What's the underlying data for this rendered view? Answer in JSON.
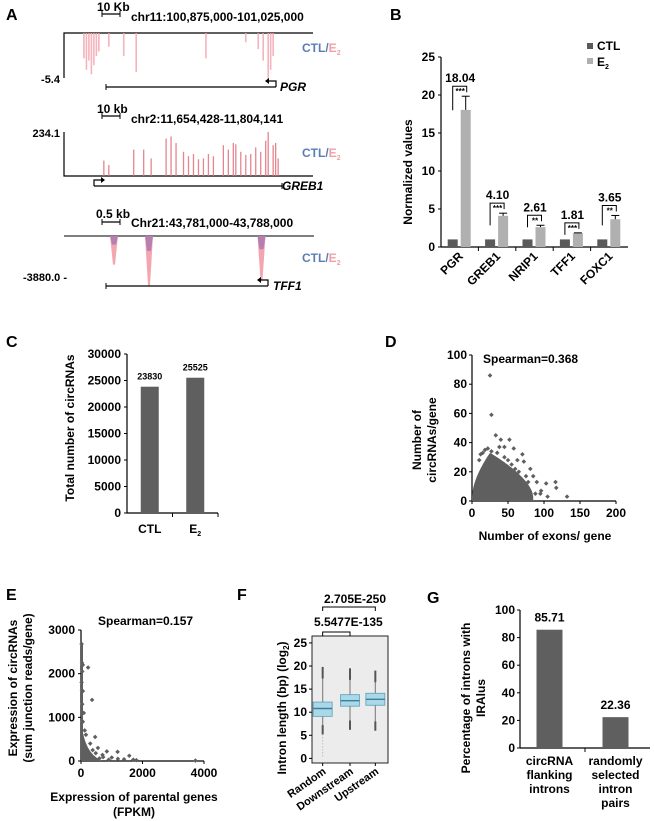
{
  "panel_labels": [
    "A",
    "B",
    "C",
    "D",
    "E",
    "F",
    "G"
  ],
  "colors": {
    "ctl_label": "#5b7db5",
    "e2_label": "#f0a0a8",
    "e2_signal": "#f4a6b0",
    "overlap_signal": "#9b6fb0",
    "ctl_bar": "#5a5a5a",
    "e2_bar": "#b0b0b0",
    "dark_bar": "#5f5f5f",
    "scatter": "#5f5f5f",
    "box_fill": "#a9d8e8",
    "box_line": "#5c9fb8",
    "panel_bg": "#ececec"
  },
  "chart_data": [
    {
      "id": "A",
      "type": "genome-track",
      "legend": {
        "ctl": "CTL",
        "sep": "/",
        "e2": "E",
        "e2_sub": "2"
      },
      "tracks": [
        {
          "gene": "PGR",
          "region": "chr11:100,875,000-101,025,000",
          "scale_label": "10 Kb",
          "y_label": "-5.4",
          "direction": "minus",
          "orientation": "down",
          "peaks": [
            [
              0.08,
              0.55
            ],
            [
              0.09,
              0.8
            ],
            [
              0.1,
              0.6
            ],
            [
              0.11,
              0.9
            ],
            [
              0.12,
              0.7
            ],
            [
              0.13,
              0.5
            ],
            [
              0.14,
              0.4
            ],
            [
              0.18,
              0.3
            ],
            [
              0.24,
              0.5
            ],
            [
              0.29,
              0.85
            ],
            [
              0.57,
              0.55
            ],
            [
              0.73,
              0.2
            ],
            [
              0.78,
              0.35
            ],
            [
              0.8,
              0.6
            ],
            [
              0.82,
              1.0
            ],
            [
              0.83,
              0.8
            ],
            [
              0.84,
              0.5
            ]
          ]
        },
        {
          "gene": "GREB1",
          "region": "chr2:11,654,428-11,804,141",
          "scale_label": "10 kb",
          "y_label": "234.1",
          "direction": "plus",
          "orientation": "up",
          "peaks": [
            [
              0.16,
              0.35
            ],
            [
              0.18,
              0.25
            ],
            [
              0.28,
              0.6
            ],
            [
              0.32,
              0.6
            ],
            [
              0.35,
              0.4
            ],
            [
              0.41,
              0.85
            ],
            [
              0.43,
              0.9
            ],
            [
              0.45,
              0.75
            ],
            [
              0.48,
              0.55
            ],
            [
              0.5,
              0.45
            ],
            [
              0.52,
              0.5
            ],
            [
              0.54,
              0.38
            ],
            [
              0.56,
              0.4
            ],
            [
              0.58,
              0.5
            ],
            [
              0.6,
              0.45
            ],
            [
              0.64,
              0.7
            ],
            [
              0.66,
              0.6
            ],
            [
              0.68,
              0.75
            ],
            [
              0.69,
              0.72
            ],
            [
              0.71,
              0.55
            ],
            [
              0.73,
              0.48
            ],
            [
              0.75,
              0.5
            ],
            [
              0.77,
              0.65
            ],
            [
              0.79,
              0.55
            ],
            [
              0.81,
              0.8
            ],
            [
              0.82,
              1.0
            ],
            [
              0.84,
              0.7
            ],
            [
              0.85,
              0.75
            ],
            [
              0.86,
              0.4
            ]
          ]
        },
        {
          "gene": "TFF1",
          "region": "Chr21:43,781,000-43,788,000",
          "scale_label": "0.5 kb",
          "y_label": "-3880.0 -",
          "direction": "minus",
          "orientation": "down",
          "peaks": [
            [
              0.2,
              0.55
            ],
            [
              0.34,
              0.95
            ],
            [
              0.79,
              0.85
            ]
          ]
        }
      ]
    },
    {
      "id": "B",
      "type": "bar",
      "title": "",
      "xlabel": "",
      "ylabel": "Normalized values",
      "ylim": [
        0,
        25
      ],
      "yticks": [
        "0",
        "5",
        "10",
        "15",
        "20",
        "25"
      ],
      "categories": [
        "PGR",
        "GREB1",
        "NRIP1",
        "TFF1",
        "FOXC1"
      ],
      "series": [
        {
          "name": "CTL",
          "values": [
            1,
            1,
            1,
            1,
            1
          ],
          "errors": [
            0.05,
            0.05,
            0.05,
            0.05,
            0.05
          ]
        },
        {
          "name": "E2",
          "values": [
            18.04,
            4.1,
            2.61,
            1.81,
            3.65
          ],
          "errors": [
            1.8,
            0.35,
            0.25,
            0.05,
            0.5
          ]
        }
      ],
      "legend": [
        {
          "label": "CTL",
          "sub": ""
        },
        {
          "label": "E",
          "sub": "2"
        }
      ],
      "legend_position": "top-right",
      "annotations": [
        {
          "label": "18.04",
          "sig": "***"
        },
        {
          "label": "4.10",
          "sig": "***"
        },
        {
          "label": "2.61",
          "sig": "**"
        },
        {
          "label": "1.81",
          "sig": "***"
        },
        {
          "label": "3.65",
          "sig": "**"
        }
      ]
    },
    {
      "id": "C",
      "type": "bar",
      "ylabel": "Total number of circRNAs",
      "xlabel": "",
      "ylim": [
        0,
        30000
      ],
      "yticks": [
        "0",
        "5000",
        "10000",
        "15000",
        "20000",
        "25000",
        "30000"
      ],
      "categories": [
        {
          "label": "CTL",
          "sub": ""
        },
        {
          "label": "E",
          "sub": "2"
        }
      ],
      "values": [
        23830,
        25525
      ],
      "data_labels": [
        "23830",
        "25525"
      ]
    },
    {
      "id": "D",
      "type": "scatter",
      "annotation": "Spearman=0.368",
      "xlabel": "Number of exons/ gene",
      "ylabel_lines": [
        "Number of",
        "circRNAs/gene"
      ],
      "xlim": [
        0,
        200
      ],
      "ylim": [
        0,
        100
      ],
      "xticks": [
        "0",
        "50",
        "100",
        "150",
        "200"
      ],
      "yticks": [
        "0",
        "20",
        "40",
        "60",
        "80",
        "100"
      ],
      "outliers": [
        [
          25,
          86
        ],
        [
          27,
          59
        ],
        [
          33,
          45
        ],
        [
          40,
          42
        ],
        [
          52,
          42
        ],
        [
          45,
          37
        ],
        [
          38,
          37
        ],
        [
          58,
          36
        ],
        [
          70,
          32
        ],
        [
          22,
          36
        ],
        [
          27,
          34
        ],
        [
          10,
          28
        ],
        [
          15,
          33
        ],
        [
          63,
          28
        ],
        [
          72,
          27
        ],
        [
          81,
          22
        ],
        [
          60,
          22
        ],
        [
          55,
          25
        ],
        [
          65,
          20
        ],
        [
          75,
          17
        ],
        [
          85,
          17
        ],
        [
          78,
          13
        ],
        [
          90,
          13
        ],
        [
          96,
          7
        ],
        [
          103,
          12
        ],
        [
          116,
          13
        ],
        [
          117,
          9
        ],
        [
          105,
          3
        ],
        [
          132,
          3
        ],
        [
          88,
          5
        ],
        [
          95,
          5
        ],
        [
          70,
          10
        ],
        [
          65,
          15
        ],
        [
          50,
          28
        ],
        [
          45,
          30
        ],
        [
          35,
          33
        ],
        [
          18,
          35
        ],
        [
          12,
          32
        ]
      ],
      "cloud": {
        "x_range": [
          0,
          85
        ],
        "y_max_at_center": 30,
        "center_x": 25
      }
    },
    {
      "id": "E",
      "type": "scatter",
      "annotation": "Spearman=0.157",
      "xlabel_lines": [
        "Expression of parental genes",
        "(FPKM)"
      ],
      "ylabel_lines": [
        "Expression of circRNAs",
        "(sum junction reads/gene)"
      ],
      "xlim": [
        0,
        4000
      ],
      "ylim": [
        0,
        3000
      ],
      "xticks": [
        "0",
        "2000",
        "4000"
      ],
      "yticks": [
        "0",
        "1000",
        "2000",
        "3000"
      ],
      "outliers": [
        [
          20,
          2680
        ],
        [
          30,
          2250
        ],
        [
          60,
          2200
        ],
        [
          230,
          2140
        ],
        [
          40,
          2050
        ],
        [
          20,
          1800
        ],
        [
          30,
          1620
        ],
        [
          60,
          1600
        ],
        [
          360,
          1400
        ],
        [
          40,
          1300
        ],
        [
          90,
          1100
        ],
        [
          60,
          900
        ],
        [
          120,
          700
        ],
        [
          160,
          600
        ],
        [
          460,
          550
        ],
        [
          300,
          400
        ],
        [
          550,
          300
        ],
        [
          840,
          220
        ],
        [
          1190,
          210
        ],
        [
          1570,
          120
        ],
        [
          720,
          90
        ],
        [
          1000,
          80
        ],
        [
          1200,
          50
        ],
        [
          1400,
          40
        ],
        [
          1700,
          30
        ],
        [
          1800,
          20
        ],
        [
          3720,
          10
        ],
        [
          900,
          30
        ],
        [
          600,
          60
        ],
        [
          700,
          140
        ],
        [
          480,
          180
        ],
        [
          380,
          250
        ]
      ],
      "cloud": {
        "x_max": 500,
        "y_max": 1000
      }
    },
    {
      "id": "F",
      "type": "box",
      "ylabel": "Intron length (bp) (log 2)",
      "ylabel_main": "Intron length (bp) (log",
      "ylabel_sub": "2",
      "ylim": [
        -1,
        26.5
      ],
      "yticks": [
        "0",
        "5",
        "10",
        "15",
        "20",
        "25"
      ],
      "categories": [
        "Random",
        "Downstream",
        "Upstream"
      ],
      "boxes": [
        {
          "q1": 9.1,
          "median": 10.8,
          "q3": 12.2,
          "whisker_low": 5.2,
          "whisker_high": 19.8,
          "outlier_low": 0.2
        },
        {
          "q1": 11.3,
          "median": 12.5,
          "q3": 13.8,
          "whisker_low": 6.2,
          "whisker_high": 19.5
        },
        {
          "q1": 11.5,
          "median": 12.8,
          "q3": 14.1,
          "whisker_low": 6.0,
          "whisker_high": 19.0
        }
      ],
      "comparisons": [
        {
          "label": "5.5477E-135",
          "from": "Random",
          "to": "Downstream"
        },
        {
          "label": "2.705E-250",
          "from": "Random",
          "to": "Upstream"
        }
      ]
    },
    {
      "id": "G",
      "type": "bar",
      "ylabel_lines": [
        "Percentage of introns with",
        "IRAlus"
      ],
      "ylim": [
        0,
        100
      ],
      "yticks": [
        "0",
        "20",
        "40",
        "60",
        "80",
        "100"
      ],
      "categories": [
        [
          "circRNA",
          "flanking",
          "introns"
        ],
        [
          "randomly",
          "selected",
          "intron",
          "pairs"
        ]
      ],
      "values": [
        85.71,
        22.36
      ],
      "data_labels": [
        "85.71",
        "22.36"
      ]
    }
  ]
}
